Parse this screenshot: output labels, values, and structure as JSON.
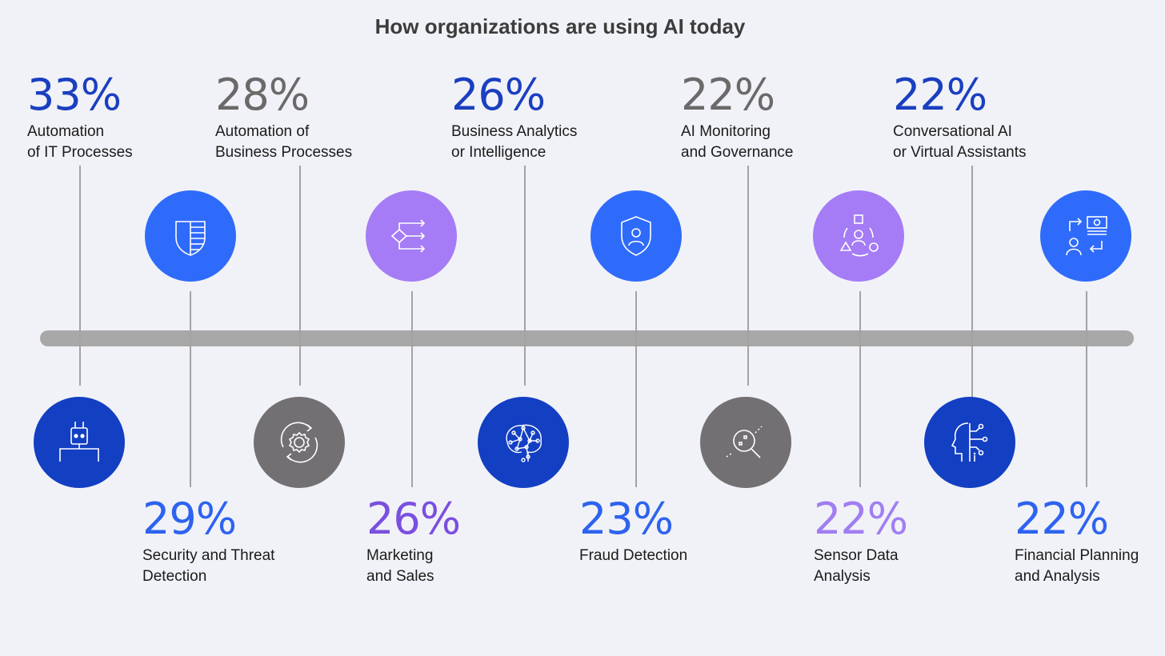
{
  "title": "How organizations are using AI today",
  "colors": {
    "dark_blue": "#1a3fc0",
    "gray": "#6b6969",
    "purple": "#7b4fe0",
    "light_purple": "#a07ef2",
    "axis": "#a8a8a8",
    "circle_blue": "#2f6bfa",
    "circle_navy": "#133fc3",
    "circle_purple": "#a57cf5",
    "circle_gray": "#727072"
  },
  "items": [
    {
      "percent": "33%",
      "value": 33,
      "label_line1": "Automation",
      "label_line2": "of IT Processes",
      "icon": "robot-icon"
    },
    {
      "percent": "29%",
      "value": 29,
      "label_line1": "Security and Threat",
      "label_line2": "Detection",
      "icon": "shield-stripes-icon"
    },
    {
      "percent": "28%",
      "value": 28,
      "label_line1": "Automation of",
      "label_line2": "Business Processes",
      "icon": "gear-cycle-icon"
    },
    {
      "percent": "26%",
      "value": 26,
      "label_line1": "Marketing",
      "label_line2": "and Sales",
      "icon": "decision-flow-icon"
    },
    {
      "percent": "26%",
      "value": 26,
      "label_line1": "Business Analytics",
      "label_line2": "or Intelligence",
      "icon": "neural-brain-icon"
    },
    {
      "percent": "23%",
      "value": 23,
      "label_line1": "Fraud Detection",
      "label_line2": "",
      "icon": "shield-user-icon"
    },
    {
      "percent": "22%",
      "value": 22,
      "label_line1": "AI Monitoring",
      "label_line2": "and Governance",
      "icon": "magnifier-data-icon"
    },
    {
      "percent": "22%",
      "value": 22,
      "label_line1": "Sensor Data",
      "label_line2": "Analysis",
      "icon": "user-shapes-cycle-icon"
    },
    {
      "percent": "22%",
      "value": 22,
      "label_line1": "Conversational AI",
      "label_line2": "or Virtual Assistants",
      "icon": "ai-head-circuit-icon"
    },
    {
      "percent": "22%",
      "value": 22,
      "label_line1": "Financial Planning",
      "label_line2": "and Analysis",
      "icon": "money-exchange-icon"
    }
  ]
}
